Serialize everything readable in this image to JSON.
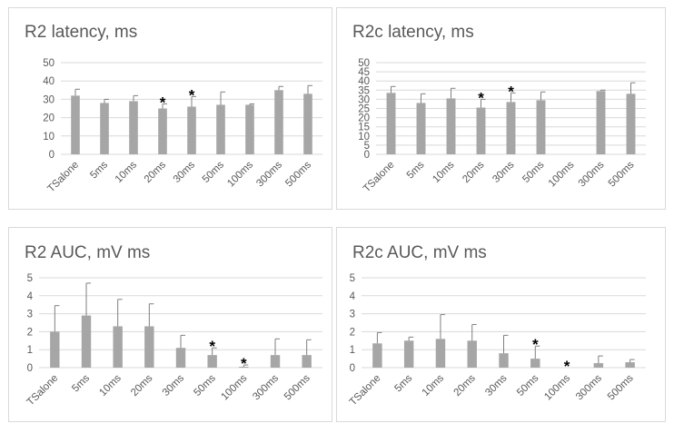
{
  "chart_data": [
    {
      "type": "bar",
      "title": "R2 latency, ms",
      "categories": [
        "TSalone",
        "5ms",
        "10ms",
        "20ms",
        "30ms",
        "50ms",
        "100ms",
        "300ms",
        "500ms"
      ],
      "values": [
        32,
        28,
        29,
        25,
        26,
        27,
        27,
        35,
        33
      ],
      "errors": [
        3.5,
        2,
        3,
        2.5,
        5.5,
        7,
        0.5,
        2,
        4.5
      ],
      "significant": [
        false,
        false,
        false,
        true,
        true,
        false,
        false,
        false,
        false
      ],
      "significance_marker": "*",
      "yticks": [
        "0",
        "10",
        "20",
        "30",
        "40",
        "50"
      ],
      "ylim": [
        0,
        50
      ],
      "xlabel": "",
      "ylabel": "",
      "grid": true,
      "color": "#a6a6a6"
    },
    {
      "type": "bar",
      "title": "R2c latency, ms",
      "categories": [
        "TSalone",
        "5ms",
        "10ms",
        "20ms",
        "30ms",
        "50ms",
        "100ms",
        "300ms",
        "500ms"
      ],
      "values": [
        33.5,
        28,
        30.5,
        25.5,
        28.5,
        29.5,
        0,
        34.5,
        33
      ],
      "errors": [
        3.5,
        5,
        5.5,
        4.5,
        5,
        4.5,
        0,
        0.5,
        6
      ],
      "significant": [
        false,
        false,
        false,
        true,
        true,
        false,
        false,
        false,
        false
      ],
      "significance_marker": "*",
      "yticks": [
        "0",
        "5",
        "10",
        "15",
        "20",
        "25",
        "30",
        "35",
        "40",
        "45",
        "50"
      ],
      "ylim": [
        0,
        50
      ],
      "xlabel": "",
      "ylabel": "",
      "grid": true,
      "color": "#a6a6a6"
    },
    {
      "type": "bar",
      "title": "R2 AUC, mV ms",
      "categories": [
        "TSalone",
        "5ms",
        "10ms",
        "20ms",
        "30ms",
        "50ms",
        "100ms",
        "300ms",
        "500ms"
      ],
      "values": [
        2,
        2.9,
        2.3,
        2.3,
        1.1,
        0.7,
        0.05,
        0.7,
        0.7
      ],
      "errors": [
        1.45,
        1.8,
        1.5,
        1.25,
        0.7,
        0.4,
        0.1,
        0.9,
        0.85
      ],
      "significant": [
        false,
        false,
        false,
        false,
        false,
        true,
        true,
        false,
        false
      ],
      "significance_marker": "*",
      "yticks": [
        "0",
        "1",
        "2",
        "3",
        "4",
        "5"
      ],
      "ylim": [
        0,
        5
      ],
      "xlabel": "",
      "ylabel": "",
      "grid": true,
      "color": "#a6a6a6"
    },
    {
      "type": "bar",
      "title": "R2c AUC, mV ms",
      "categories": [
        "TSalone",
        "5ms",
        "10ms",
        "20ms",
        "30ms",
        "50ms",
        "100ms",
        "300ms",
        "500ms"
      ],
      "values": [
        1.35,
        1.5,
        1.6,
        1.5,
        0.8,
        0.5,
        0,
        0.25,
        0.3
      ],
      "errors": [
        0.6,
        0.2,
        1.35,
        0.9,
        1.0,
        0.7,
        0,
        0.4,
        0.15
      ],
      "significant": [
        false,
        false,
        false,
        false,
        false,
        true,
        true,
        false,
        false
      ],
      "significance_marker": "*",
      "yticks": [
        "0",
        "1",
        "2",
        "3",
        "4",
        "5"
      ],
      "ylim": [
        0,
        5
      ],
      "xlabel": "",
      "ylabel": "",
      "grid": true,
      "color": "#a6a6a6"
    }
  ]
}
